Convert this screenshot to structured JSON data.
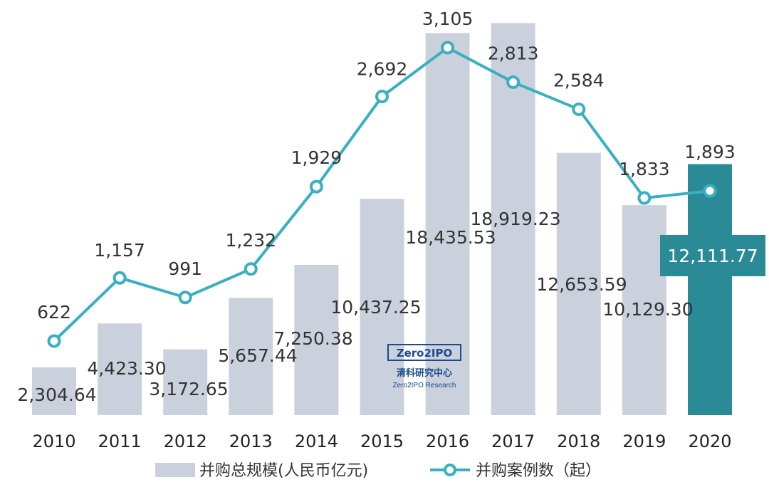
{
  "chart_data": {
    "type": "bar",
    "categories": [
      "2010",
      "2011",
      "2012",
      "2013",
      "2014",
      "2015",
      "2016",
      "2017",
      "2018",
      "2019",
      "2020"
    ],
    "series": [
      {
        "name": "并购总规模(人民币亿元)",
        "type": "bar",
        "values": [
          2304.64,
          4423.3,
          3172.65,
          5657.44,
          7250.38,
          10437.25,
          18435.53,
          18919.23,
          12653.59,
          10129.3,
          12111.77
        ],
        "labels": [
          "2,304.64",
          "4,423.30",
          "3,172.65",
          "5,657.44",
          "7,250.38",
          "10,437.25",
          "18,435.53",
          "18,919.23",
          "12,653.59",
          "10,129.30",
          "12,111.77"
        ],
        "color": "#cbd1dc",
        "highlight_color": "#2a8a96",
        "highlight_index": 10
      },
      {
        "name": "并购案例数（起）",
        "type": "line",
        "values": [
          622,
          1157,
          991,
          1232,
          1929,
          2692,
          3105,
          2813,
          2584,
          1833,
          1893
        ],
        "labels": [
          "622",
          "1,157",
          "991",
          "1,232",
          "1,929",
          "2,692",
          "3,105",
          "2,813",
          "2,584",
          "1,833",
          "1,893"
        ],
        "color": "#3aafc0"
      }
    ],
    "grid": false,
    "legend_position": "bottom"
  },
  "watermark": {
    "logo_text": "Zero2IPO",
    "name_cn": "清科研究中心",
    "name_en": "Zero2IPO Research"
  }
}
